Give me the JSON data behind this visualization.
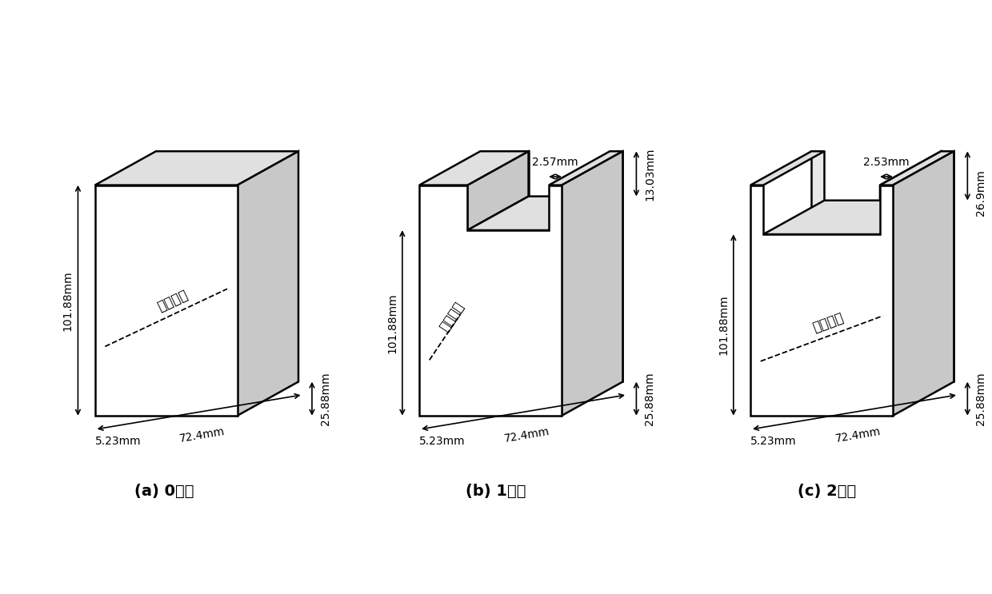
{
  "background_color": "#ffffff",
  "line_color": "#000000",
  "fc_white": "#ffffff",
  "fc_light": "#e0e0e0",
  "fc_mid": "#c8c8c8",
  "subfig_labels": [
    "(a) 0阶段",
    "(b) 1阶段",
    "(c) 2阶段"
  ],
  "lw": 1.8,
  "fs_dim": 10,
  "fs_sub": 14,
  "fs_clamp": 12
}
